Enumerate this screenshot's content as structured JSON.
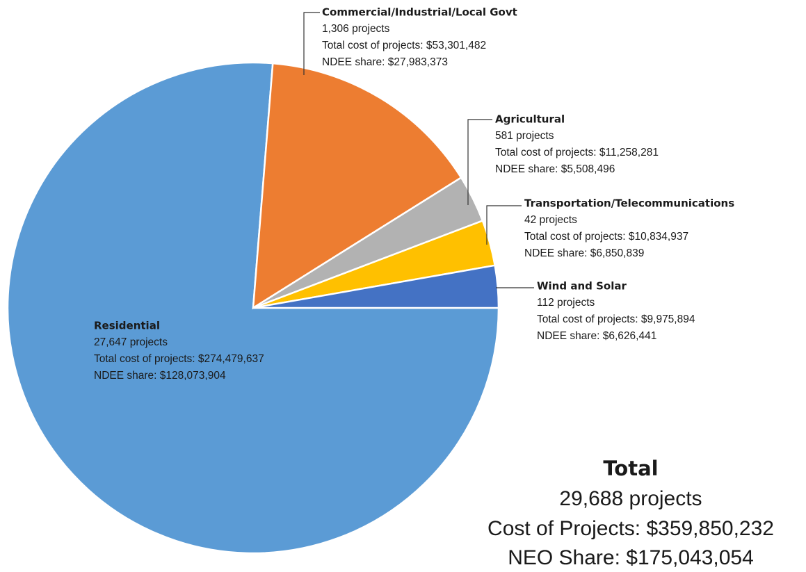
{
  "chart_data": {
    "type": "pie",
    "categories": [
      "Residential",
      "Commercial/Industrial/Local Govt",
      "Agricultural",
      "Transportation/Telecommunications",
      "Wind and Solar"
    ],
    "values": [
      274479637,
      53301482,
      11258281,
      10834937,
      9975894
    ],
    "value_labels": [
      "Total cost of projects: $274,479,637",
      "Total cost of projects: $53,301,482",
      "Total cost of projects: $11,258,281",
      "Total cost of projects: $10,834,937",
      "Total cost of projects: $9,975,894"
    ],
    "projects": [
      "27,647 projects",
      "1,306 projects",
      "581 projects",
      "42 projects",
      "112 projects"
    ],
    "shares": [
      "NDEE share: $128,073,904",
      "NDEE share: $27,983,373",
      "NDEE share: $5,508,496",
      "NDEE share: $6,850,839",
      "NDEE share: $6,626,441"
    ],
    "colors": [
      "#5b9bd5",
      "#ed7d31",
      "#b2b2b2",
      "#ffc000",
      "#4472c4"
    ],
    "total": {
      "title": "Total",
      "projects": "29,688 projects",
      "cost": "Cost of Projects: $359,850,232",
      "share": "NEO Share: $175,043,054"
    }
  }
}
